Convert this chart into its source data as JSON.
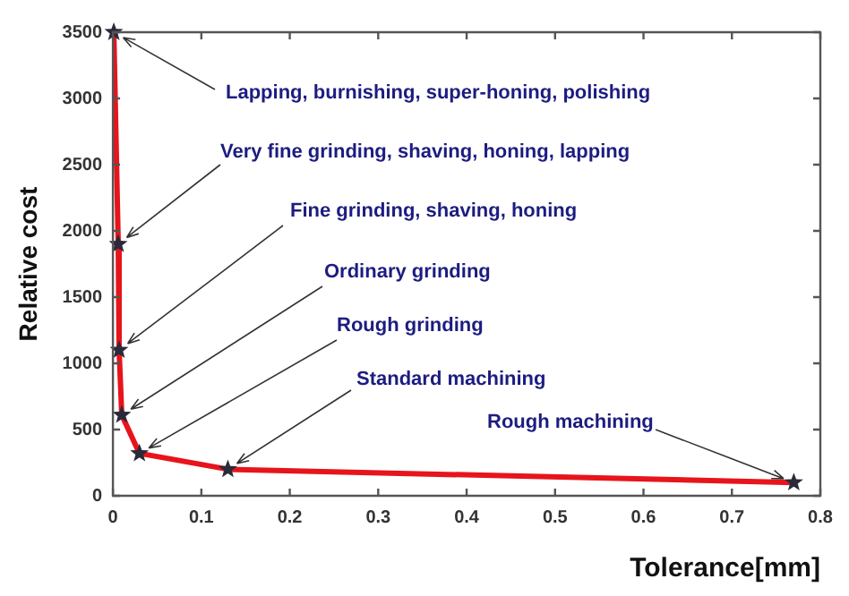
{
  "chart_data": {
    "type": "line",
    "xlabel": "Tolerance[mm]",
    "ylabel": "Relative cost",
    "x": [
      0.001,
      0.006,
      0.007,
      0.01,
      0.03,
      0.13,
      0.77
    ],
    "series": [
      {
        "color": "#e8141c",
        "values": [
          3500,
          1900,
          1100,
          610,
          320,
          200,
          100
        ]
      }
    ],
    "xlim": [
      0,
      0.8
    ],
    "xticks": [
      0,
      0.1,
      0.2,
      0.3,
      0.4,
      0.5,
      0.6,
      0.7,
      0.8
    ],
    "ylim": [
      0,
      3500
    ],
    "yticks": [
      0,
      500,
      1000,
      1500,
      2000,
      2500,
      3000,
      3500
    ],
    "marker": "star",
    "line_style": "solid",
    "legend": false,
    "annotations": [
      {
        "text": "Lapping, burnishing, super-honing, polishing",
        "x": 0.001,
        "y": 3500
      },
      {
        "text": "Very fine grinding, shaving, honing, lapping",
        "x": 0.006,
        "y": 1900
      },
      {
        "text": "Fine grinding, shaving, honing",
        "x": 0.007,
        "y": 1100
      },
      {
        "text": "Ordinary grinding",
        "x": 0.01,
        "y": 610
      },
      {
        "text": "Rough grinding",
        "x": 0.03,
        "y": 320
      },
      {
        "text": "Standard machining",
        "x": 0.13,
        "y": 200
      },
      {
        "text": "Rough machining",
        "x": 0.77,
        "y": 100
      }
    ]
  }
}
